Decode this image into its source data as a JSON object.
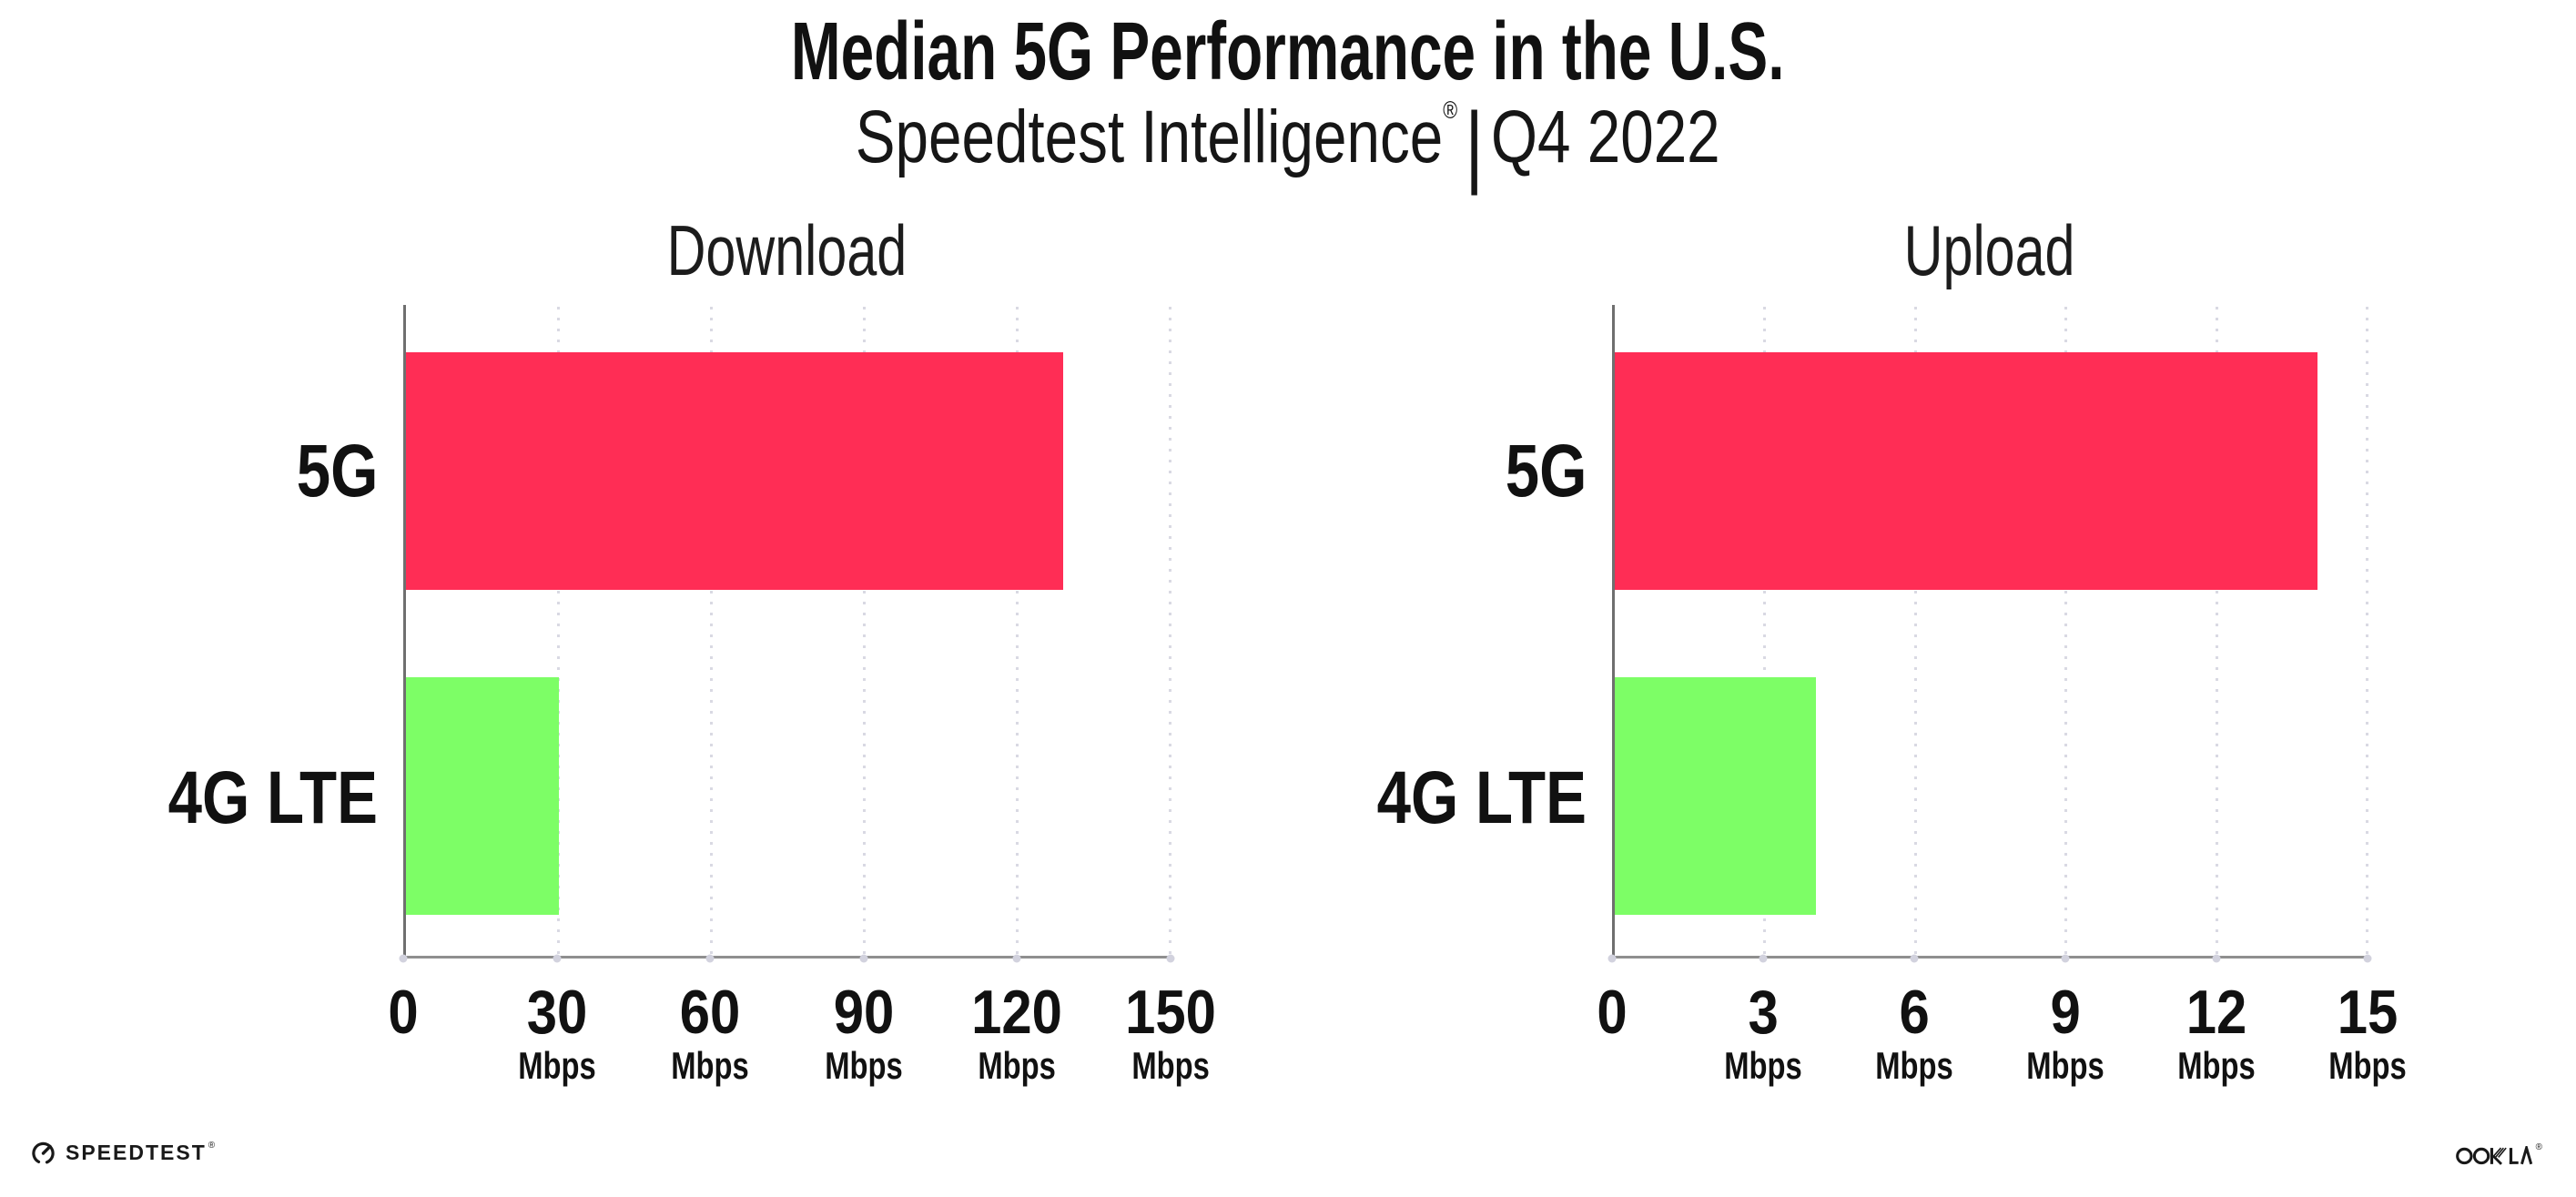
{
  "header": {
    "title": "Median 5G Performance in the U.S.",
    "subtitle_brand": "Speedtest Intelligence",
    "subtitle_mark": "®",
    "separator": "|",
    "subtitle_period": "Q4 2022"
  },
  "colors": {
    "bar_5g": "#FF2D55",
    "bar_4g_lte": "#7DFE66",
    "gridline": "#D9D9E3",
    "axis_left": "#6F6F6F",
    "axis_bottom": "#8F8F8F",
    "text": "#111111"
  },
  "chart_data": [
    {
      "type": "bar",
      "orientation": "horizontal",
      "title": "Download",
      "categories": [
        "5G",
        "4G LTE"
      ],
      "values": [
        129,
        30
      ],
      "bar_colors": [
        "#FF2D55",
        "#7DFE66"
      ],
      "xlim": [
        0,
        150
      ],
      "xticks": [
        {
          "value": 0,
          "label": "0",
          "unit": ""
        },
        {
          "value": 30,
          "label": "30",
          "unit": "Mbps"
        },
        {
          "value": 60,
          "label": "60",
          "unit": "Mbps"
        },
        {
          "value": 90,
          "label": "90",
          "unit": "Mbps"
        },
        {
          "value": 120,
          "label": "120",
          "unit": "Mbps"
        },
        {
          "value": 150,
          "label": "150",
          "unit": "Mbps"
        }
      ],
      "grid": "vertical-dotted",
      "legend": "none"
    },
    {
      "type": "bar",
      "orientation": "horizontal",
      "title": "Upload",
      "categories": [
        "5G",
        "4G LTE"
      ],
      "values": [
        14,
        4
      ],
      "bar_colors": [
        "#FF2D55",
        "#7DFE66"
      ],
      "xlim": [
        0,
        15
      ],
      "xticks": [
        {
          "value": 0,
          "label": "0",
          "unit": ""
        },
        {
          "value": 3,
          "label": "3",
          "unit": "Mbps"
        },
        {
          "value": 6,
          "label": "6",
          "unit": "Mbps"
        },
        {
          "value": 9,
          "label": "9",
          "unit": "Mbps"
        },
        {
          "value": 12,
          "label": "12",
          "unit": "Mbps"
        },
        {
          "value": 15,
          "label": "15",
          "unit": "Mbps"
        }
      ],
      "grid": "vertical-dotted",
      "legend": "none"
    }
  ],
  "footer": {
    "speedtest_label": "SPEEDTEST",
    "speedtest_mark": "®",
    "ookla_label": "OOKLA",
    "ookla_mark": "®"
  }
}
